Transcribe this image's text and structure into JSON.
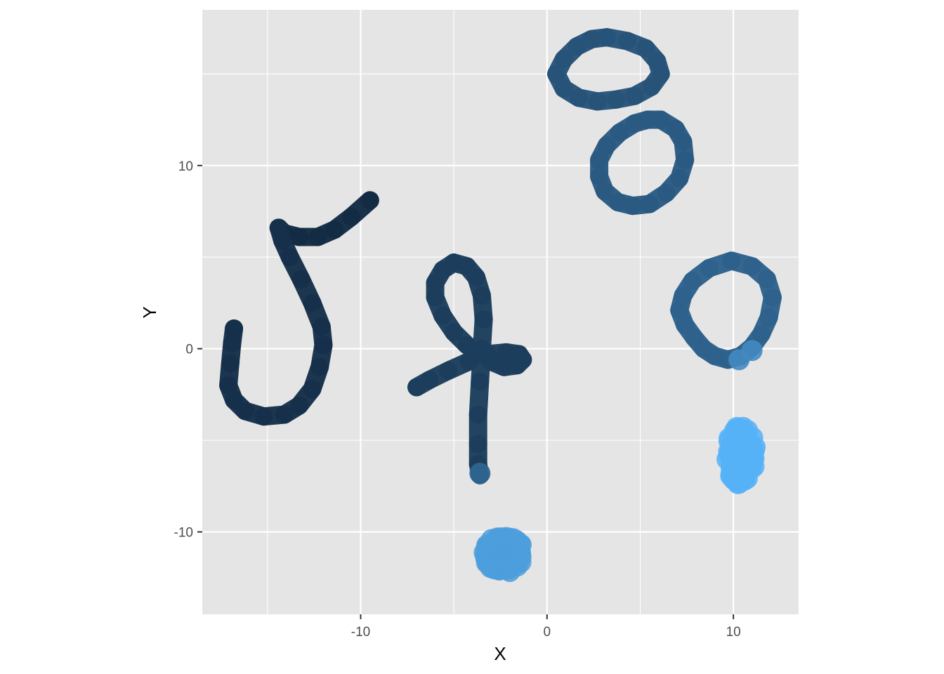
{
  "chart_data": {
    "type": "line",
    "xlabel": "X",
    "ylabel": "Y",
    "xlim": [
      -18.5,
      13.5
    ],
    "ylim": [
      -14.5,
      18.5
    ],
    "xticks": [
      -10,
      0,
      10
    ],
    "xtick_labels": [
      "-10",
      "0",
      "10"
    ],
    "yticks": [
      -10,
      0,
      10
    ],
    "ytick_labels": [
      "-10",
      "0",
      "10"
    ],
    "grid": true,
    "legend": "none",
    "colors": {
      "panel_background": "#e5e5e5",
      "grid": "#ffffff",
      "color_low": "#132b43",
      "color_high": "#56b1f7"
    },
    "series": [
      {
        "color_value": 0.0,
        "points": [
          [
            -9.5,
            8.1
          ],
          [
            -10.5,
            7.2
          ],
          [
            -11.4,
            6.5
          ],
          [
            -12.3,
            6.1
          ],
          [
            -13.3,
            6.1
          ],
          [
            -14.1,
            6.3
          ],
          [
            -14.4,
            6.6
          ]
        ]
      },
      {
        "color_value": 0.04,
        "points": [
          [
            -14.4,
            6.6
          ],
          [
            -14.2,
            5.9
          ],
          [
            -13.8,
            5.0
          ],
          [
            -13.2,
            3.8
          ],
          [
            -12.6,
            2.5
          ],
          [
            -12.1,
            1.2
          ],
          [
            -12.0,
            0.2
          ],
          [
            -12.2,
            -1.0
          ],
          [
            -12.6,
            -2.2
          ],
          [
            -13.3,
            -3.1
          ],
          [
            -14.1,
            -3.6
          ],
          [
            -15.2,
            -3.7
          ],
          [
            -16.2,
            -3.4
          ],
          [
            -16.8,
            -2.8
          ],
          [
            -17.1,
            -2.0
          ],
          [
            -17.0,
            -0.8
          ],
          [
            -16.9,
            0.3
          ],
          [
            -16.8,
            1.1
          ]
        ]
      },
      {
        "color_value": 0.14,
        "points": [
          [
            -7.0,
            -2.1
          ],
          [
            -6.3,
            -1.7
          ],
          [
            -5.3,
            -1.2
          ],
          [
            -4.2,
            -0.7
          ],
          [
            -3.2,
            -0.3
          ],
          [
            -2.2,
            -0.2
          ],
          [
            -1.5,
            -0.3
          ],
          [
            -1.3,
            -0.6
          ],
          [
            -1.6,
            -0.9
          ],
          [
            -2.3,
            -1.0
          ],
          [
            -3.0,
            -0.7
          ],
          [
            -3.6,
            -0.3
          ],
          [
            -4.3,
            0.2
          ],
          [
            -5.0,
            0.9
          ],
          [
            -5.6,
            1.8
          ],
          [
            -6.0,
            2.8
          ],
          [
            -6.0,
            3.6
          ],
          [
            -5.6,
            4.3
          ],
          [
            -5.0,
            4.7
          ],
          [
            -4.3,
            4.5
          ],
          [
            -3.8,
            3.9
          ],
          [
            -3.5,
            2.9
          ],
          [
            -3.4,
            1.6
          ],
          [
            -3.5,
            0.0
          ],
          [
            -3.6,
            -1.8
          ],
          [
            -3.7,
            -3.6
          ],
          [
            -3.7,
            -5.2
          ],
          [
            -3.7,
            -6.3
          ],
          [
            -3.6,
            -6.9
          ]
        ]
      },
      {
        "color_value": 0.3,
        "points": [
          [
            3.2,
            17.0
          ],
          [
            4.3,
            16.8
          ],
          [
            5.3,
            16.4
          ],
          [
            5.9,
            15.7
          ],
          [
            6.1,
            15.0
          ],
          [
            5.6,
            14.3
          ],
          [
            4.7,
            13.8
          ],
          [
            3.7,
            13.6
          ],
          [
            2.7,
            13.5
          ],
          [
            1.7,
            13.7
          ],
          [
            0.9,
            14.2
          ],
          [
            0.5,
            15.0
          ],
          [
            0.9,
            15.8
          ],
          [
            1.6,
            16.5
          ],
          [
            2.4,
            16.9
          ],
          [
            3.2,
            17.0
          ]
        ]
      },
      {
        "color_value": 0.35,
        "points": [
          [
            6.1,
            12.5
          ],
          [
            6.9,
            12.0
          ],
          [
            7.3,
            11.3
          ],
          [
            7.4,
            10.3
          ],
          [
            7.1,
            9.3
          ],
          [
            6.4,
            8.5
          ],
          [
            5.5,
            7.9
          ],
          [
            4.6,
            7.8
          ],
          [
            3.8,
            8.0
          ],
          [
            3.1,
            8.6
          ],
          [
            2.8,
            9.4
          ],
          [
            2.8,
            10.3
          ],
          [
            3.2,
            11.1
          ],
          [
            3.9,
            11.8
          ],
          [
            4.7,
            12.3
          ],
          [
            5.4,
            12.5
          ],
          [
            6.1,
            12.5
          ]
        ]
      },
      {
        "color_value": 0.4,
        "points": [
          [
            9.9,
            4.8
          ],
          [
            11.0,
            4.5
          ],
          [
            11.8,
            3.8
          ],
          [
            12.1,
            2.8
          ],
          [
            11.9,
            1.7
          ],
          [
            11.5,
            0.8
          ],
          [
            11.0,
            0.1
          ],
          [
            10.4,
            -0.4
          ],
          [
            9.7,
            -0.6
          ],
          [
            9.0,
            -0.4
          ],
          [
            8.4,
            0.0
          ],
          [
            7.9,
            0.6
          ],
          [
            7.4,
            1.3
          ],
          [
            7.1,
            2.1
          ],
          [
            7.3,
            2.9
          ],
          [
            7.8,
            3.7
          ],
          [
            8.7,
            4.4
          ],
          [
            9.9,
            4.8
          ]
        ]
      }
    ],
    "point_clusters": [
      {
        "color_value": 0.85,
        "center": [
          -2.3,
          -11.2
        ],
        "spread": [
          1.1,
          1.0
        ],
        "count": 90
      },
      {
        "color_value": 1.0,
        "center": [
          10.4,
          -5.8
        ],
        "spread": [
          0.8,
          1.6
        ],
        "count": 90
      }
    ],
    "extra_points": [
      {
        "color_value": 0.45,
        "x": -3.6,
        "y": -6.8
      },
      {
        "color_value": 0.7,
        "x": 10.3,
        "y": -0.6
      },
      {
        "color_value": 0.7,
        "x": 11.0,
        "y": -0.1
      }
    ]
  }
}
